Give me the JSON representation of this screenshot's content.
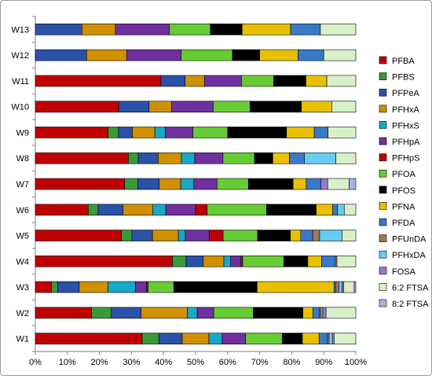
{
  "chart_data": {
    "type": "bar",
    "orientation": "horizontal",
    "stacked": "percent",
    "categories": [
      "W1",
      "W2",
      "W3",
      "W4",
      "W5",
      "W6",
      "W7",
      "W8",
      "W9",
      "W10",
      "W11",
      "W12",
      "W13"
    ],
    "xlim": [
      0,
      100
    ],
    "xticks": [
      "0%",
      "10%",
      "20%",
      "30%",
      "40%",
      "50%",
      "60%",
      "70%",
      "80%",
      "90%",
      "100%"
    ],
    "grid": false,
    "legend_position": "right",
    "series": [
      {
        "name": "PFBA",
        "color": "#c00000",
        "values": [
          32,
          17,
          5,
          40,
          25,
          16,
          27,
          28,
          21,
          26,
          39,
          0,
          0
        ]
      },
      {
        "name": "PFBS",
        "color": "#3a9a3a",
        "values": [
          5,
          6,
          2,
          4,
          3,
          3,
          4,
          3,
          3,
          0,
          0,
          0,
          0
        ]
      },
      {
        "name": "PFPeA",
        "color": "#2a52a8",
        "values": [
          7,
          9,
          6.7,
          5,
          6,
          7.5,
          6.5,
          6,
          4,
          9.5,
          7.5,
          16,
          12.5
        ]
      },
      {
        "name": "PFHxA",
        "color": "#d09000",
        "values": [
          8,
          14,
          9,
          6,
          7.5,
          9,
          6.5,
          7,
          6.5,
          7,
          6,
          12.5,
          9
        ]
      },
      {
        "name": "PFHxS",
        "color": "#18a8c8",
        "values": [
          4,
          3,
          8.5,
          2,
          2,
          4,
          4,
          4,
          3,
          0,
          0,
          0,
          0
        ]
      },
      {
        "name": "PFHpA",
        "color": "#7030a0",
        "values": [
          7,
          5,
          3.5,
          3,
          7,
          9,
          7,
          8.5,
          8,
          13,
          11.5,
          17,
          14.5
        ]
      },
      {
        "name": "PFHpS",
        "color": "#c00000",
        "values": [
          0,
          0,
          0.5,
          0.5,
          4,
          3.5,
          0,
          0,
          0,
          0,
          0,
          0,
          0
        ]
      },
      {
        "name": "PFOA",
        "color": "#66cc33",
        "values": [
          11,
          12,
          8,
          12,
          10,
          18,
          9.5,
          9.5,
          10,
          11.5,
          10,
          16,
          11
        ]
      },
      {
        "name": "PFOS",
        "color": "#000000",
        "values": [
          6,
          15,
          26,
          7,
          9.5,
          15,
          13.5,
          5.5,
          17,
          16,
          10,
          8.5,
          8.5
        ]
      },
      {
        "name": "PFNA",
        "color": "#e8c000",
        "values": [
          5,
          3,
          24,
          4,
          3,
          5,
          4,
          5,
          8,
          9.5,
          6.5,
          12,
          13
        ]
      },
      {
        "name": "PFDA",
        "color": "#3a78c8",
        "values": [
          2.5,
          2,
          0.5,
          4,
          3.5,
          1.5,
          4.5,
          4.5,
          4,
          0,
          0,
          8,
          8
        ]
      },
      {
        "name": "PFUnDA",
        "color": "#a0785a",
        "values": [
          0.5,
          0.5,
          1,
          0.5,
          2,
          0,
          0,
          0,
          0,
          0,
          0,
          0,
          0
        ]
      },
      {
        "name": "PFHxDA",
        "color": "#66ccf0",
        "values": [
          1,
          0.5,
          1,
          0,
          6.5,
          2,
          0,
          9.5,
          0,
          0,
          0,
          0,
          0
        ]
      },
      {
        "name": "FOSA",
        "color": "#9a78d0",
        "values": [
          0.5,
          1,
          0.5,
          0,
          0,
          0,
          2,
          0,
          0,
          0,
          0,
          0,
          0
        ]
      },
      {
        "name": "6:2 FTSA",
        "color": "#d8f0c8",
        "values": [
          6.5,
          9,
          3.3,
          5.5,
          4,
          3.5,
          6.5,
          6,
          8,
          7.5,
          9,
          10,
          9.5
        ]
      },
      {
        "name": "8:2 FTSA",
        "color": "#a8b4e0",
        "values": [
          0,
          0,
          0.5,
          0,
          0,
          0,
          2,
          0,
          0,
          0,
          0,
          0,
          0
        ]
      }
    ]
  }
}
